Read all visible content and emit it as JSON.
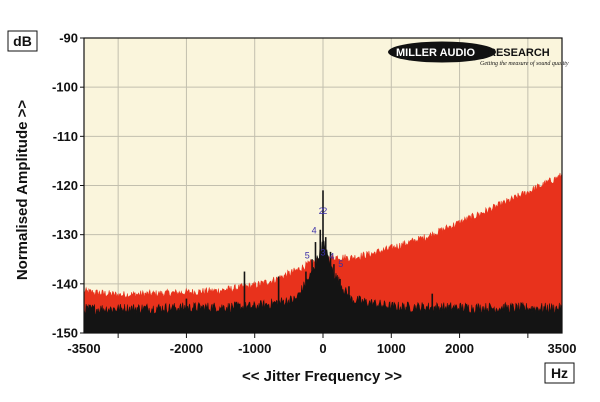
{
  "chart_data": {
    "type": "line",
    "xlabel": "<< Jitter Frequency >>",
    "ylabel": "Normalised Amplitude >>",
    "x_unit": "Hz",
    "y_unit": "dB",
    "xlim": [
      -3500,
      3500
    ],
    "ylim": [
      -150,
      -90
    ],
    "x_ticks": [
      {
        "value": -3500,
        "label": "-3500"
      },
      {
        "value": -2000,
        "label": "-2000"
      },
      {
        "value": -1000,
        "label": "-1000"
      },
      {
        "value": 0,
        "label": "0"
      },
      {
        "value": 1000,
        "label": "1000"
      },
      {
        "value": 2000,
        "label": "2000"
      },
      {
        "value": 3500,
        "label": "3500"
      }
    ],
    "x_gridlines": [
      -3000,
      -2000,
      -1000,
      0,
      1000,
      2000,
      3000
    ],
    "y_ticks": [
      {
        "value": -90,
        "label": "-90"
      },
      {
        "value": -100,
        "label": "-100"
      },
      {
        "value": -110,
        "label": "-110"
      },
      {
        "value": -120,
        "label": "-120"
      },
      {
        "value": -130,
        "label": "-130"
      },
      {
        "value": -140,
        "label": "-140"
      },
      {
        "value": -150,
        "label": "-150"
      }
    ],
    "grid": true,
    "series": [
      {
        "color": "#e8321c",
        "envelope_x": [
          -3500,
          -3000,
          -2500,
          -2000,
          -1500,
          -1000,
          -700,
          -400,
          -200,
          0,
          200,
          400,
          700,
          1000,
          1500,
          2000,
          2500,
          3000,
          3500
        ],
        "envelope_y": [
          -141.8,
          -142.5,
          -142.3,
          -142.0,
          -141.6,
          -140.6,
          -139.4,
          -137.6,
          -136.2,
          -135.2,
          -134.8,
          -135.0,
          -134.2,
          -133.0,
          -130.8,
          -127.8,
          -124.8,
          -121.6,
          -118.2
        ]
      },
      {
        "color": "#141414",
        "envelope_x": [
          -3500,
          -2000,
          -1000,
          -400,
          -150,
          0,
          150,
          400,
          1000,
          2000,
          3500
        ],
        "envelope_y": [
          -145.5,
          -145.2,
          -145.0,
          -143.5,
          -138.0,
          -132.0,
          -138.0,
          -143.5,
          -145.0,
          -145.2,
          -145.3
        ]
      }
    ],
    "peaks": [
      {
        "x": 0,
        "y": -121.0
      },
      {
        "x": -40,
        "y": -129.0
      },
      {
        "x": 40,
        "y": -130.5
      },
      {
        "x": -110,
        "y": -131.5
      },
      {
        "x": 110,
        "y": -133.5
      },
      {
        "x": -160,
        "y": -135.0
      },
      {
        "x": 160,
        "y": -136.0
      },
      {
        "x": -250,
        "y": -137.5
      },
      {
        "x": 250,
        "y": -139.0
      },
      {
        "x": -650,
        "y": -138.5
      },
      {
        "x": -1150,
        "y": -137.5
      },
      {
        "x": 380,
        "y": -140.5
      },
      {
        "x": 1600,
        "y": -142.0
      },
      {
        "x": -2000,
        "y": -143.0
      }
    ],
    "markers": [
      {
        "label": "2",
        "x": -25,
        "y": -125.8
      },
      {
        "label": "2",
        "x": 25,
        "y": -125.8
      },
      {
        "label": "4",
        "x": -130,
        "y": -129.8
      },
      {
        "label": "5",
        "x": -230,
        "y": -134.8
      },
      {
        "label": "3",
        "x": 0,
        "y": -134.2
      },
      {
        "label": "4",
        "x": 130,
        "y": -135.0
      },
      {
        "label": "5",
        "x": 260,
        "y": -136.6
      }
    ]
  },
  "logo": {
    "text_a": "MILLER AUDIO",
    "text_b": "RESEARCH",
    "tagline": "Getting the measure of sound quality"
  },
  "colors": {
    "plot_background": "#faf5dc",
    "grid": "#c2bfae",
    "noise_red": "#e8321c",
    "noise_black": "#141414"
  }
}
